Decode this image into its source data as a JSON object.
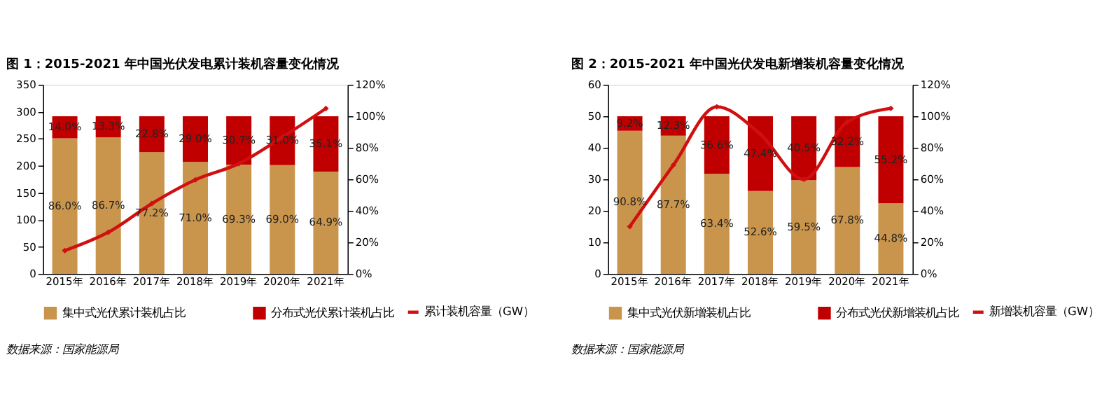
{
  "chart_data": [
    {
      "type": "bar",
      "title": "图 1：2015-2021 年中国光伏发电累计装机容量变化情况",
      "stacked": true,
      "categories": [
        "2015年",
        "2016年",
        "2017年",
        "2018年",
        "2019年",
        "2020年",
        "2021年"
      ],
      "series": [
        {
          "name": "集中式光伏累计装机占比",
          "color": "#c9954c",
          "axis": "y2",
          "values": [
            86.0,
            86.7,
            77.2,
            71.0,
            69.3,
            69.0,
            64.9
          ],
          "value_labels": [
            "86.0%",
            "86.7%",
            "77.2%",
            "71.0%",
            "69.3%",
            "69.0%",
            "64.9%"
          ]
        },
        {
          "name": "分布式光伏累计装机占比",
          "color": "#c00000",
          "axis": "y2",
          "values": [
            14.0,
            13.3,
            22.8,
            29.0,
            30.7,
            31.0,
            35.1
          ],
          "value_labels": [
            "14.0%",
            "13.3%",
            "22.8%",
            "29.0%",
            "30.7%",
            "31.0%",
            "35.1%"
          ]
        },
        {
          "name": "累计装机容量（GW）",
          "type": "line",
          "color": "#d01010",
          "values": [
            43,
            77,
            130,
            174,
            204,
            253,
            306
          ]
        }
      ],
      "ylim": [
        0,
        350
      ],
      "yticks": [
        0,
        50,
        100,
        150,
        200,
        250,
        300,
        350
      ],
      "y2lim": [
        0,
        120
      ],
      "y2ticks": [
        {
          "value": 0,
          "label": "0%"
        },
        {
          "value": 20,
          "label": "20%"
        },
        {
          "value": 40,
          "label": "40%"
        },
        {
          "value": 60,
          "label": "60%"
        },
        {
          "value": 80,
          "label": "80%"
        },
        {
          "value": 100,
          "label": "100%"
        },
        {
          "value": 120,
          "label": "120%"
        }
      ],
      "legend": "bottom",
      "marker": "diamond",
      "line_style": "solid",
      "annotations": [
        "数据来源：国家能源局"
      ]
    },
    {
      "type": "bar",
      "title": "图 2：2015-2021 年中国光伏发电新增装机容量变化情况",
      "stacked": true,
      "categories": [
        "2015年",
        "2016年",
        "2017年",
        "2018年",
        "2019年",
        "2020年",
        "2021年"
      ],
      "series": [
        {
          "name": "集中式光伏新增装机占比",
          "color": "#c9954c",
          "axis": "y2",
          "values": [
            90.8,
            87.7,
            63.4,
            52.6,
            59.5,
            67.8,
            44.8
          ],
          "value_labels": [
            "90.8%",
            "87.7%",
            "63.4%",
            "52.6%",
            "59.5%",
            "67.8%",
            "44.8%"
          ]
        },
        {
          "name": "分布式光伏新增装机占比",
          "color": "#c00000",
          "axis": "y2",
          "values": [
            9.2,
            12.3,
            36.6,
            47.4,
            40.5,
            32.2,
            55.2
          ],
          "value_labels": [
            "9.2%",
            "12.3%",
            "36.6%",
            "47.4%",
            "40.5%",
            "32.2%",
            "55.2%"
          ]
        },
        {
          "name": "新增装机容量（GW）",
          "type": "line",
          "color": "#d01010",
          "values": [
            15,
            34.5,
            53,
            44.3,
            30,
            48.2,
            52.5
          ]
        }
      ],
      "ylim": [
        0,
        60
      ],
      "yticks": [
        0,
        10,
        20,
        30,
        40,
        50,
        60
      ],
      "y2lim": [
        0,
        120
      ],
      "y2ticks": [
        {
          "value": 0,
          "label": "0%"
        },
        {
          "value": 20,
          "label": "20%"
        },
        {
          "value": 40,
          "label": "40%"
        },
        {
          "value": 60,
          "label": "60%"
        },
        {
          "value": 80,
          "label": "80%"
        },
        {
          "value": 100,
          "label": "100%"
        },
        {
          "value": 120,
          "label": "120%"
        }
      ],
      "legend": "bottom",
      "marker": "diamond",
      "line_style": "solid",
      "annotations": [
        "数据来源：国家能源局"
      ]
    }
  ]
}
